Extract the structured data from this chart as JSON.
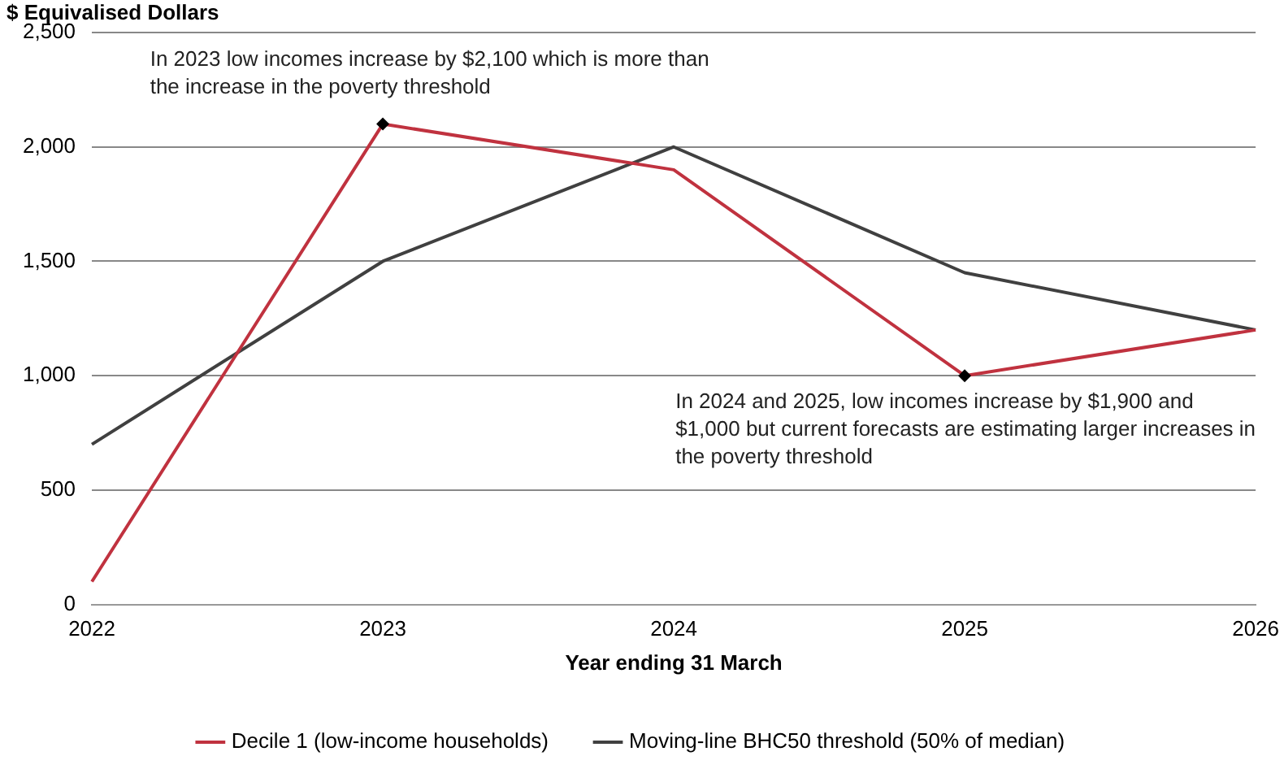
{
  "chart_data": {
    "type": "line",
    "ylabel": "$ Equivalised Dollars",
    "xlabel": "Year ending 31 March",
    "categories": [
      "2022",
      "2023",
      "2024",
      "2025",
      "2026"
    ],
    "series": [
      {
        "name": "Decile 1 (low-income households)",
        "color": "#c0323f",
        "values": [
          100,
          2100,
          1900,
          1000,
          1200
        ]
      },
      {
        "name": "Moving-line BHC50 threshold (50% of median)",
        "color": "#404040",
        "values": [
          700,
          1500,
          2000,
          1450,
          1200
        ]
      }
    ],
    "ylim": [
      0,
      2500
    ],
    "yticks": [
      {
        "value": 0,
        "label": "0"
      },
      {
        "value": 500,
        "label": "500"
      },
      {
        "value": 1000,
        "label": "1,000"
      },
      {
        "value": 1500,
        "label": "1,500"
      },
      {
        "value": 2000,
        "label": "2,000"
      },
      {
        "value": 2500,
        "label": "2,500"
      }
    ],
    "grid": "y",
    "legend": "bottom",
    "marker": "none",
    "line_style": "solid",
    "annotations": [
      {
        "text": "In 2023 low incomes increase by $2,100 which is more than the increase in the poverty threshold",
        "x": "2023",
        "y": 2100
      },
      {
        "text": "In 2024 and 2025, low incomes increase by $1,900 and $1,000 but current forecasts are estimating larger increases in the poverty threshold",
        "x": "2025",
        "y": 1000
      }
    ]
  }
}
